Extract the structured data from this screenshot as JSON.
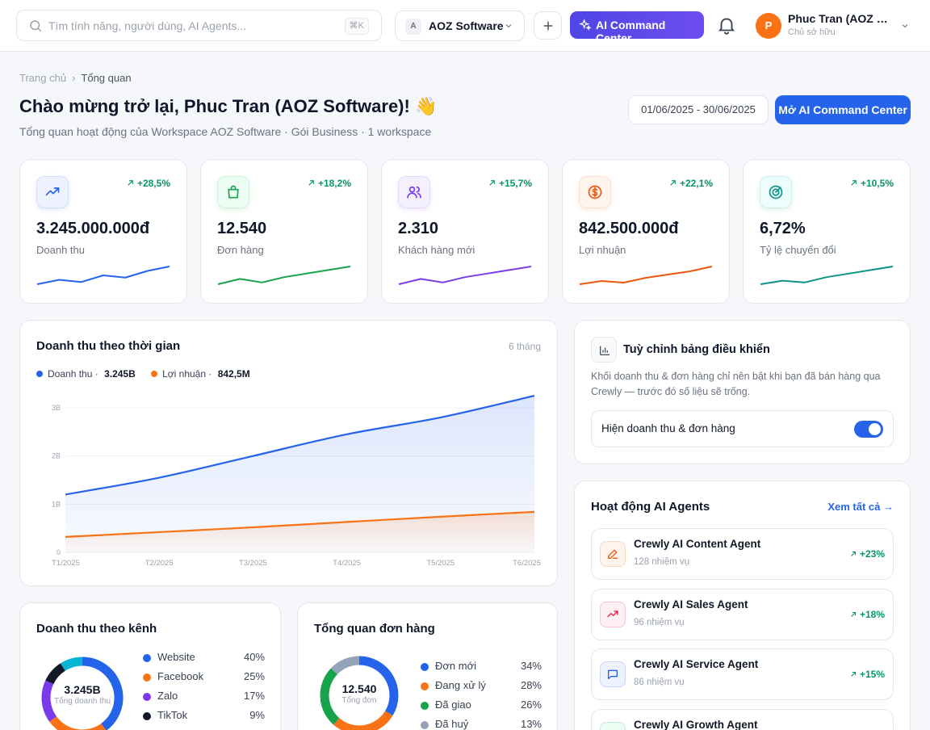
{
  "topbar": {
    "search_placeholder": "Tìm tính năng, người dùng, AI Agents...",
    "search_shortcut": "⌘K",
    "workspace_badge": "A",
    "workspace_name": "AOZ Software",
    "ai_button": "AI Command Center",
    "user_initial": "P",
    "user_name": "Phuc Tran (AOZ Software)",
    "user_role": "Chủ sở hữu"
  },
  "breadcrumb": {
    "home": "Trang chủ",
    "separator": "›",
    "current": "Tổng quan"
  },
  "header": {
    "title": "Chào mừng trở lại, Phuc Tran (AOZ Software)! 👋",
    "subtitle": "Tổng quan hoạt động của Workspace AOZ Software · Gói Business · 1 workspace",
    "date_range": "01/06/2025 - 30/06/2025",
    "open_button": "Mở AI Command Center"
  },
  "kpis": [
    {
      "value": "3.245.000.000đ",
      "label": "Doanh thu",
      "delta": "+28,5%",
      "icon": "trending-up-icon",
      "color": "#2563eb",
      "bg": "#eef2ff",
      "spark": [
        12,
        14,
        13,
        16,
        15,
        18,
        20
      ]
    },
    {
      "value": "12.540",
      "label": "Đơn hàng",
      "delta": "+18,2%",
      "icon": "shopping-bag-icon",
      "color": "#16a34a",
      "bg": "#ecfdf3",
      "spark": [
        12,
        15,
        13,
        16,
        18,
        20,
        22
      ]
    },
    {
      "value": "2.310",
      "label": "Khách hàng mới",
      "delta": "+15,7%",
      "icon": "users-icon",
      "color": "#7c3aed",
      "bg": "#f5f0ff",
      "spark": [
        12,
        15,
        13,
        16,
        18,
        20,
        22
      ]
    },
    {
      "value": "842.500.000đ",
      "label": "Lợi nhuận",
      "delta": "+22,1%",
      "icon": "dollar-icon",
      "color": "#ea580c",
      "bg": "#fff4ec",
      "spark": [
        12,
        14,
        13,
        16,
        18,
        20,
        23
      ]
    },
    {
      "value": "6,72%",
      "label": "Tỷ lệ chuyển đổi",
      "delta": "+10,5%",
      "icon": "target-icon",
      "color": "#0d9488",
      "bg": "#ecfdfb",
      "spark": [
        12,
        14,
        13,
        16,
        18,
        20,
        22
      ]
    }
  ],
  "revenue_card": {
    "title": "Doanh thu theo thời gian",
    "period": "6 tháng",
    "legend": [
      {
        "name": "Doanh thu",
        "total": "3.245B",
        "color": "#2563eb"
      },
      {
        "name": "Lợi nhuận",
        "total": "842,5M",
        "color": "#f97316"
      }
    ]
  },
  "chart_data": {
    "type": "area",
    "x": [
      "T1/2025",
      "T2/2025",
      "T3/2025",
      "T4/2025",
      "T5/2025",
      "T6/2025"
    ],
    "y_ticks": [
      "0",
      "1B",
      "2B",
      "3B"
    ],
    "ylim": [
      0,
      3
    ],
    "series": [
      {
        "name": "Doanh thu",
        "values": [
          1.2,
          1.55,
          2.0,
          2.45,
          2.8,
          3.25
        ],
        "color": "#2563eb"
      },
      {
        "name": "Lợi nhuận",
        "values": [
          0.32,
          0.42,
          0.52,
          0.63,
          0.74,
          0.84
        ],
        "color": "#f97316"
      }
    ]
  },
  "customize": {
    "title": "Tuỳ chỉnh bảng điều khiển",
    "desc": "Khối doanh thu & đơn hàng chỉ nên bật khi bạn đã bán hàng qua Crewly — trước đó số liệu sẽ trống.",
    "toggle_label": "Hiện doanh thu & đơn hàng",
    "toggle_on": true
  },
  "agents_card": {
    "title": "Hoạt động AI Agents",
    "see_all": "Xem tất cả →",
    "agents": [
      {
        "name": "Crewly AI Content Agent",
        "tasks": "128 nhiệm vụ",
        "delta": "+23%",
        "icon": "pen-icon",
        "color": "#ea580c",
        "bg": "#fff4ec"
      },
      {
        "name": "Crewly AI Sales Agent",
        "tasks": "96 nhiệm vụ",
        "delta": "+18%",
        "icon": "trending-up-icon",
        "color": "#e11d48",
        "bg": "#fff1f3"
      },
      {
        "name": "Crewly AI Service Agent",
        "tasks": "86 nhiệm vụ",
        "delta": "+15%",
        "icon": "chat-icon",
        "color": "#2563eb",
        "bg": "#eef2ff"
      },
      {
        "name": "Crewly AI Growth Agent",
        "tasks": "",
        "delta": "",
        "icon": "growth-icon",
        "color": "#16a34a",
        "bg": "#ecfdf3"
      }
    ]
  },
  "channel_card": {
    "title": "Doanh thu theo kênh",
    "center_value": "3.245B",
    "center_label": "Tổng doanh thu",
    "items": [
      {
        "name": "Website",
        "pct": "40%",
        "value": 40,
        "color": "#2563eb"
      },
      {
        "name": "Facebook",
        "pct": "25%",
        "value": 25,
        "color": "#f97316"
      },
      {
        "name": "Zalo",
        "pct": "17%",
        "value": 17,
        "color": "#7c3aed"
      },
      {
        "name": "TikTok",
        "pct": "9%",
        "value": 9,
        "color": "#111827"
      },
      {
        "name": "",
        "pct": "",
        "value": 9,
        "color": "#06b6d4"
      }
    ]
  },
  "orders_card": {
    "title": "Tổng quan đơn hàng",
    "center_value": "12.540",
    "center_label": "Tổng đơn",
    "items": [
      {
        "name": "Đơn mới",
        "pct": "34%",
        "value": 34,
        "color": "#2563eb"
      },
      {
        "name": "Đang xử lý",
        "pct": "28%",
        "value": 28,
        "color": "#f97316"
      },
      {
        "name": "Đã giao",
        "pct": "26%",
        "value": 26,
        "color": "#16a34a"
      },
      {
        "name": "Đã huỷ",
        "pct": "13%",
        "value": 13,
        "color": "#94a3b8"
      }
    ]
  }
}
